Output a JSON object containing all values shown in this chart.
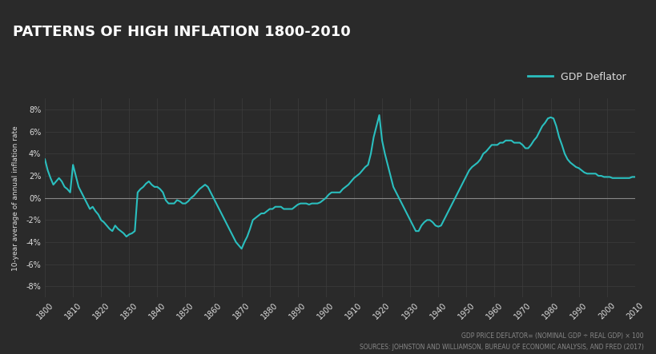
{
  "title": "PATTERNS OF HIGH INFLATION 1800-2010",
  "ylabel": "10-year average of annual inflation rate",
  "legend_label": "GDP Deflator",
  "footnote1": "GDP PRICE DEFLATOR= (NOMINAL GDP ÷ REAL GDP) × 100",
  "footnote2": "SOURCES: JOHNSTON AND WILLIAMSON, BUREAU OF ECONOMIC ANALYSIS, AND FRED (2017)",
  "bg_color": "#2a2a2a",
  "line_color": "#2abfbf",
  "grid_color": "#3d3d3d",
  "zero_line_color": "#888888",
  "text_color": "#dddddd",
  "title_color": "#ffffff",
  "xlim": [
    1800,
    2010
  ],
  "ylim": [
    -0.09,
    0.09
  ],
  "xticks": [
    1800,
    1810,
    1820,
    1830,
    1840,
    1850,
    1860,
    1870,
    1880,
    1890,
    1900,
    1910,
    1920,
    1930,
    1940,
    1950,
    1960,
    1970,
    1980,
    1990,
    2000,
    2010
  ],
  "yticks": [
    -0.08,
    -0.06,
    -0.04,
    -0.02,
    0.0,
    0.02,
    0.04,
    0.06,
    0.08
  ],
  "years": [
    1800,
    1801,
    1802,
    1803,
    1804,
    1805,
    1806,
    1807,
    1808,
    1809,
    1810,
    1811,
    1812,
    1813,
    1814,
    1815,
    1816,
    1817,
    1818,
    1819,
    1820,
    1821,
    1822,
    1823,
    1824,
    1825,
    1826,
    1827,
    1828,
    1829,
    1830,
    1831,
    1832,
    1833,
    1834,
    1835,
    1836,
    1837,
    1838,
    1839,
    1840,
    1841,
    1842,
    1843,
    1844,
    1845,
    1846,
    1847,
    1848,
    1849,
    1850,
    1851,
    1852,
    1853,
    1854,
    1855,
    1856,
    1857,
    1858,
    1859,
    1860,
    1861,
    1862,
    1863,
    1864,
    1865,
    1866,
    1867,
    1868,
    1869,
    1870,
    1871,
    1872,
    1873,
    1874,
    1875,
    1876,
    1877,
    1878,
    1879,
    1880,
    1881,
    1882,
    1883,
    1884,
    1885,
    1886,
    1887,
    1888,
    1889,
    1890,
    1891,
    1892,
    1893,
    1894,
    1895,
    1896,
    1897,
    1898,
    1899,
    1900,
    1901,
    1902,
    1903,
    1904,
    1905,
    1906,
    1907,
    1908,
    1909,
    1910,
    1911,
    1912,
    1913,
    1914,
    1915,
    1916,
    1917,
    1918,
    1919,
    1920,
    1921,
    1922,
    1923,
    1924,
    1925,
    1926,
    1927,
    1928,
    1929,
    1930,
    1931,
    1932,
    1933,
    1934,
    1935,
    1936,
    1937,
    1938,
    1939,
    1940,
    1941,
    1942,
    1943,
    1944,
    1945,
    1946,
    1947,
    1948,
    1949,
    1950,
    1951,
    1952,
    1953,
    1954,
    1955,
    1956,
    1957,
    1958,
    1959,
    1960,
    1961,
    1962,
    1963,
    1964,
    1965,
    1966,
    1967,
    1968,
    1969,
    1970,
    1971,
    1972,
    1973,
    1974,
    1975,
    1976,
    1977,
    1978,
    1979,
    1980,
    1981,
    1982,
    1983,
    1984,
    1985,
    1986,
    1987,
    1988,
    1989,
    1990,
    1991,
    1992,
    1993,
    1994,
    1995,
    1996,
    1997,
    1998,
    1999,
    2000,
    2001,
    2002,
    2003,
    2004,
    2005,
    2006,
    2007,
    2008,
    2009,
    2010
  ],
  "values": [
    0.035,
    0.025,
    0.018,
    0.012,
    0.015,
    0.018,
    0.015,
    0.01,
    0.008,
    0.005,
    0.03,
    0.02,
    0.01,
    0.005,
    0.0,
    -0.005,
    -0.01,
    -0.008,
    -0.012,
    -0.015,
    -0.02,
    -0.022,
    -0.025,
    -0.028,
    -0.03,
    -0.025,
    -0.028,
    -0.03,
    -0.032,
    -0.035,
    -0.033,
    -0.032,
    -0.03,
    0.005,
    0.008,
    0.01,
    0.013,
    0.015,
    0.012,
    0.01,
    0.01,
    0.008,
    0.005,
    -0.002,
    -0.005,
    -0.005,
    -0.005,
    -0.002,
    -0.003,
    -0.005,
    -0.005,
    -0.003,
    0.0,
    0.002,
    0.005,
    0.008,
    0.01,
    0.012,
    0.01,
    0.005,
    0.0,
    -0.005,
    -0.01,
    -0.015,
    -0.02,
    -0.025,
    -0.03,
    -0.035,
    -0.04,
    -0.043,
    -0.046,
    -0.04,
    -0.035,
    -0.028,
    -0.02,
    -0.018,
    -0.016,
    -0.014,
    -0.014,
    -0.012,
    -0.01,
    -0.01,
    -0.008,
    -0.008,
    -0.008,
    -0.01,
    -0.01,
    -0.01,
    -0.01,
    -0.008,
    -0.006,
    -0.005,
    -0.005,
    -0.005,
    -0.006,
    -0.005,
    -0.005,
    -0.005,
    -0.004,
    -0.002,
    0.0,
    0.003,
    0.005,
    0.005,
    0.005,
    0.005,
    0.008,
    0.01,
    0.012,
    0.015,
    0.018,
    0.02,
    0.022,
    0.025,
    0.028,
    0.03,
    0.04,
    0.055,
    0.065,
    0.075,
    0.052,
    0.04,
    0.03,
    0.02,
    0.01,
    0.005,
    0.0,
    -0.005,
    -0.01,
    -0.015,
    -0.02,
    -0.025,
    -0.03,
    -0.03,
    -0.025,
    -0.022,
    -0.02,
    -0.02,
    -0.022,
    -0.025,
    -0.026,
    -0.025,
    -0.02,
    -0.015,
    -0.01,
    -0.005,
    0.0,
    0.005,
    0.01,
    0.015,
    0.02,
    0.025,
    0.028,
    0.03,
    0.032,
    0.035,
    0.04,
    0.042,
    0.045,
    0.048,
    0.048,
    0.048,
    0.05,
    0.05,
    0.052,
    0.052,
    0.052,
    0.05,
    0.05,
    0.05,
    0.048,
    0.045,
    0.045,
    0.048,
    0.052,
    0.055,
    0.06,
    0.065,
    0.068,
    0.072,
    0.073,
    0.072,
    0.065,
    0.055,
    0.048,
    0.04,
    0.035,
    0.032,
    0.03,
    0.028,
    0.027,
    0.025,
    0.023,
    0.022,
    0.022,
    0.022,
    0.022,
    0.02,
    0.02,
    0.019,
    0.019,
    0.019,
    0.018,
    0.018,
    0.018,
    0.018,
    0.018,
    0.018,
    0.018,
    0.019,
    0.019
  ]
}
